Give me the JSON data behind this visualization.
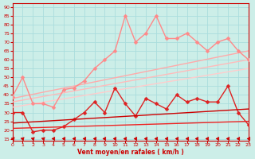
{
  "xlabel": "Vent moyen/en rafales ( km/h )",
  "background_color": "#cceee8",
  "grid_color": "#aadddd",
  "x_ticks": [
    0,
    1,
    2,
    3,
    4,
    5,
    6,
    7,
    8,
    9,
    10,
    11,
    12,
    13,
    14,
    15,
    16,
    17,
    18,
    19,
    20,
    21,
    22,
    23
  ],
  "y_ticks": [
    15,
    20,
    25,
    30,
    35,
    40,
    45,
    50,
    55,
    60,
    65,
    70,
    75,
    80,
    85,
    90
  ],
  "xlim": [
    0,
    23
  ],
  "ylim": [
    14,
    92
  ],
  "series": [
    {
      "name": "straight1_light",
      "color": "#ffaaaa",
      "linewidth": 1.0,
      "marker": null,
      "data_x": [
        0,
        23
      ],
      "data_y": [
        38,
        65
      ]
    },
    {
      "name": "straight2_light",
      "color": "#ffbbbb",
      "linewidth": 1.0,
      "marker": null,
      "data_x": [
        0,
        23
      ],
      "data_y": [
        36,
        60
      ]
    },
    {
      "name": "straight3_medium",
      "color": "#ffcccc",
      "linewidth": 1.0,
      "marker": null,
      "data_x": [
        0,
        23
      ],
      "data_y": [
        33,
        55
      ]
    },
    {
      "name": "pink_jagged",
      "color": "#ff8888",
      "linewidth": 1.0,
      "marker": "D",
      "markersize": 2.5,
      "data_x": [
        0,
        1,
        2,
        3,
        4,
        5,
        6,
        7,
        8,
        9,
        10,
        11,
        12,
        13,
        14,
        15,
        16,
        17,
        18,
        19,
        20,
        21,
        22,
        23
      ],
      "data_y": [
        39,
        50,
        35,
        35,
        33,
        43,
        44,
        48,
        55,
        60,
        65,
        85,
        70,
        75,
        85,
        72,
        72,
        75,
        70,
        65,
        70,
        72,
        65,
        60
      ]
    },
    {
      "name": "red_jagged",
      "color": "#dd2222",
      "linewidth": 1.0,
      "marker": "D",
      "markersize": 2.5,
      "data_x": [
        0,
        1,
        2,
        3,
        4,
        5,
        6,
        7,
        8,
        9,
        10,
        11,
        12,
        13,
        14,
        15,
        16,
        17,
        18,
        19,
        20,
        21,
        22,
        23
      ],
      "data_y": [
        30,
        30,
        19,
        20,
        20,
        22,
        26,
        30,
        36,
        30,
        44,
        35,
        28,
        38,
        35,
        32,
        40,
        36,
        38,
        36,
        36,
        45,
        30,
        23
      ]
    },
    {
      "name": "straight_dark1",
      "color": "#cc0000",
      "linewidth": 1.0,
      "marker": null,
      "data_x": [
        0,
        23
      ],
      "data_y": [
        24,
        32
      ]
    },
    {
      "name": "straight_dark2",
      "color": "#ee2222",
      "linewidth": 1.0,
      "marker": null,
      "data_x": [
        0,
        23
      ],
      "data_y": [
        21,
        25
      ]
    }
  ],
  "wind_arrows": {
    "x_positions": [
      0,
      1,
      2,
      3,
      4,
      5,
      6,
      7,
      8,
      9,
      10,
      11,
      12,
      13,
      14,
      15,
      16,
      17,
      18,
      19,
      20,
      21,
      22,
      23
    ],
    "directions_sw": [
      1,
      1,
      1,
      1,
      0,
      0,
      0,
      0,
      0,
      0,
      0,
      0,
      0,
      0,
      0,
      0,
      0,
      0,
      0,
      0,
      0,
      0,
      0,
      0
    ]
  }
}
